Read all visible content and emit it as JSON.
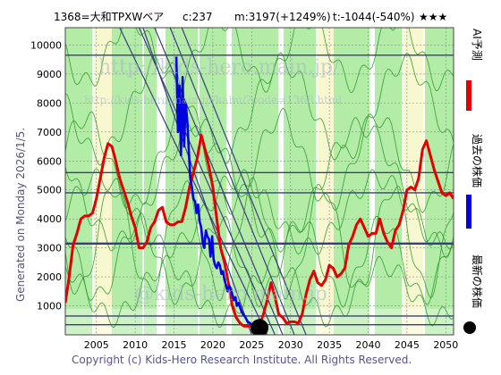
{
  "header": {
    "code_name": "1368=大和TPXWベア",
    "c_label": "c:237",
    "m_label": "m:3197(+1249%)",
    "t_label": "t:-1044(-540%)",
    "stars": "★★★"
  },
  "side_label": "Generated on Monday 2026/1/5.",
  "footer": "Copyright (c) Kids-Hero Research Institute. All Rights Reserved.",
  "watermark": {
    "main": "http://kids-hero.main.jp/",
    "sub": "http://kids-hero.main.jp/kabu/?code=1368.html",
    "bottom": "@kids-hero.main.jp"
  },
  "legend": [
    {
      "label": "AI予測",
      "color": "#e00000"
    },
    {
      "label": "過去の株価",
      "color": "#0000e0"
    },
    {
      "label": "最新の株価",
      "color": "#000000"
    }
  ],
  "colors": {
    "band_green": "#99e68a",
    "band_yellow": "#f4f6bf",
    "line_green": "#2e9a2e",
    "trend_line": "#3a3f7c",
    "h_line": "#3a3f7c"
  },
  "chart_data": {
    "type": "line",
    "xlim": [
      2001,
      2051
    ],
    "ylim": [
      0,
      10600
    ],
    "x_ticks": [
      2005,
      2010,
      2015,
      2020,
      2025,
      2030,
      2035,
      2040,
      2045,
      2050
    ],
    "y_ticks": [
      1000,
      2000,
      3000,
      4000,
      5000,
      6000,
      7000,
      8000,
      9000,
      10000
    ],
    "h_lines": [
      {
        "y": 9650,
        "weight": 1
      },
      {
        "y": 5600,
        "weight": 1
      },
      {
        "y": 4900,
        "weight": 1
      },
      {
        "y": 3150,
        "weight": 2
      },
      {
        "y": 650,
        "weight": 1
      },
      {
        "y": 350,
        "weight": 1
      }
    ],
    "current_price": {
      "x": 2026.0,
      "y": 237
    },
    "series": [
      {
        "name": "AI予測",
        "color": "#e00000",
        "x": [
          2001.0,
          2001.5,
          2002.0,
          2002.5,
          2003.0,
          2003.5,
          2004.0,
          2004.5,
          2005.0,
          2005.5,
          2006.0,
          2006.5,
          2007.0,
          2007.5,
          2008.0,
          2008.5,
          2009.0,
          2009.5,
          2010.0,
          2010.5,
          2011.0,
          2011.5,
          2012.0,
          2012.5,
          2013.0,
          2013.5,
          2014.0,
          2014.5,
          2015.0,
          2015.5,
          2016.0,
          2016.5,
          2017.0,
          2017.5,
          2018.0,
          2018.5,
          2019.0,
          2019.5,
          2020.0,
          2020.5,
          2021.0,
          2021.5,
          2022.0,
          2022.5,
          2023.0,
          2023.5,
          2024.0,
          2024.5,
          2025.0,
          2025.5,
          2026.0,
          2026.5,
          2027.0,
          2027.5,
          2028.0,
          2028.5,
          2029.0,
          2029.5,
          2030.0,
          2030.5,
          2031.0,
          2031.5,
          2032.0,
          2032.5,
          2033.0,
          2033.5,
          2034.0,
          2034.5,
          2035.0,
          2035.5,
          2036.0,
          2036.5,
          2037.0,
          2037.5,
          2038.0,
          2038.5,
          2039.0,
          2039.5,
          2040.0,
          2040.5,
          2041.0,
          2041.5,
          2042.0,
          2042.5,
          2043.0,
          2043.5,
          2044.0,
          2044.5,
          2045.0,
          2045.5,
          2046.0,
          2046.5,
          2047.0,
          2047.5,
          2048.0,
          2048.5,
          2049.0,
          2049.5,
          2050.0,
          2050.5,
          2051.0
        ],
        "y": [
          1100,
          2000,
          3100,
          3500,
          4000,
          4100,
          4100,
          4200,
          4700,
          5400,
          6100,
          6600,
          6500,
          6000,
          5400,
          5000,
          4600,
          4100,
          3700,
          3000,
          3000,
          3200,
          3700,
          3900,
          4300,
          4400,
          3900,
          3800,
          3800,
          3900,
          3900,
          4400,
          5100,
          5600,
          6100,
          6900,
          6400,
          5800,
          5100,
          4000,
          3000,
          2500,
          1800,
          1000,
          600,
          400,
          300,
          300,
          300,
          350,
          300,
          700,
          1200,
          1800,
          1300,
          700,
          600,
          400,
          450,
          450,
          400,
          700,
          1400,
          1900,
          2200,
          1800,
          1700,
          1900,
          2400,
          2300,
          2000,
          2100,
          2300,
          3100,
          3400,
          3800,
          4000,
          3700,
          3400,
          3500,
          3500,
          4000,
          3500,
          3200,
          3000,
          3600,
          3800,
          4300,
          5000,
          5100,
          5000,
          5400,
          6400,
          6700,
          6200,
          5700,
          5300,
          4900,
          4800,
          4900,
          4700
        ]
      },
      {
        "name": "過去の株価",
        "color": "#0000e0",
        "x": [
          2015.3,
          2015.5,
          2015.7,
          2015.9,
          2016.1,
          2016.3,
          2016.5,
          2016.7,
          2016.9,
          2017.1,
          2017.3,
          2017.5,
          2017.7,
          2017.9,
          2018.1,
          2018.3,
          2018.5,
          2018.7,
          2018.9,
          2019.1,
          2019.3,
          2019.5,
          2019.7,
          2019.9,
          2020.1,
          2020.3,
          2020.5,
          2020.7,
          2020.9,
          2021.1,
          2021.3,
          2021.5,
          2021.7,
          2021.9,
          2022.1,
          2022.3,
          2022.5,
          2022.7,
          2022.9,
          2023.1,
          2023.3,
          2023.5,
          2023.7,
          2023.9,
          2024.1,
          2024.3,
          2024.5,
          2024.7,
          2024.9,
          2025.1,
          2025.3,
          2025.5,
          2025.7,
          2025.9
        ],
        "y": [
          9600,
          7000,
          8600,
          6200,
          8900,
          6500,
          8000,
          7400,
          6400,
          5400,
          5100,
          4700,
          4600,
          4200,
          4500,
          3900,
          3700,
          3200,
          3000,
          3600,
          3400,
          3300,
          2700,
          3400,
          2600,
          2400,
          2300,
          2500,
          2400,
          2100,
          2200,
          1900,
          1700,
          1500,
          1700,
          1600,
          1400,
          1200,
          1300,
          1000,
          1100,
          950,
          800,
          700,
          650,
          550,
          450,
          420,
          380,
          330,
          300,
          260,
          240,
          237
        ]
      }
    ]
  }
}
